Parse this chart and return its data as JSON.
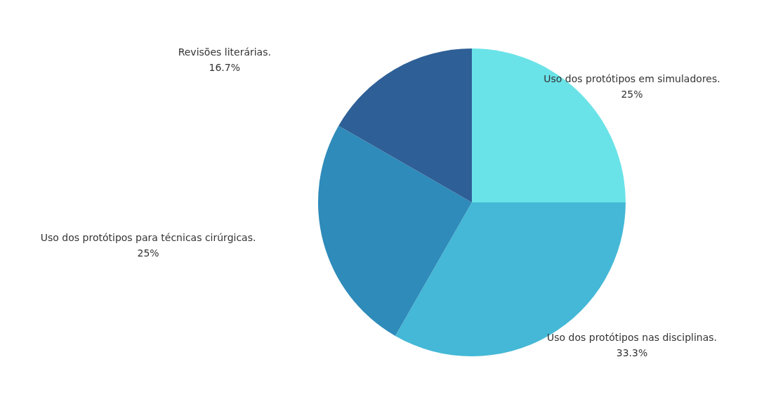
{
  "chart_data": {
    "type": "pie",
    "categories": [
      "Uso dos protótipos em simuladores.",
      "Uso dos protótipos nas disciplinas.",
      "Uso dos protótipos para técnicas cirúrgicas.",
      "Revisões literárias."
    ],
    "values": [
      25,
      33.3,
      25,
      16.7
    ],
    "value_labels": [
      "25%",
      "33.3%",
      "25%",
      "16.7%"
    ],
    "colors": [
      "#6ae3e8",
      "#44b8d6",
      "#2e8bba",
      "#2e5f96"
    ],
    "legend": false
  }
}
